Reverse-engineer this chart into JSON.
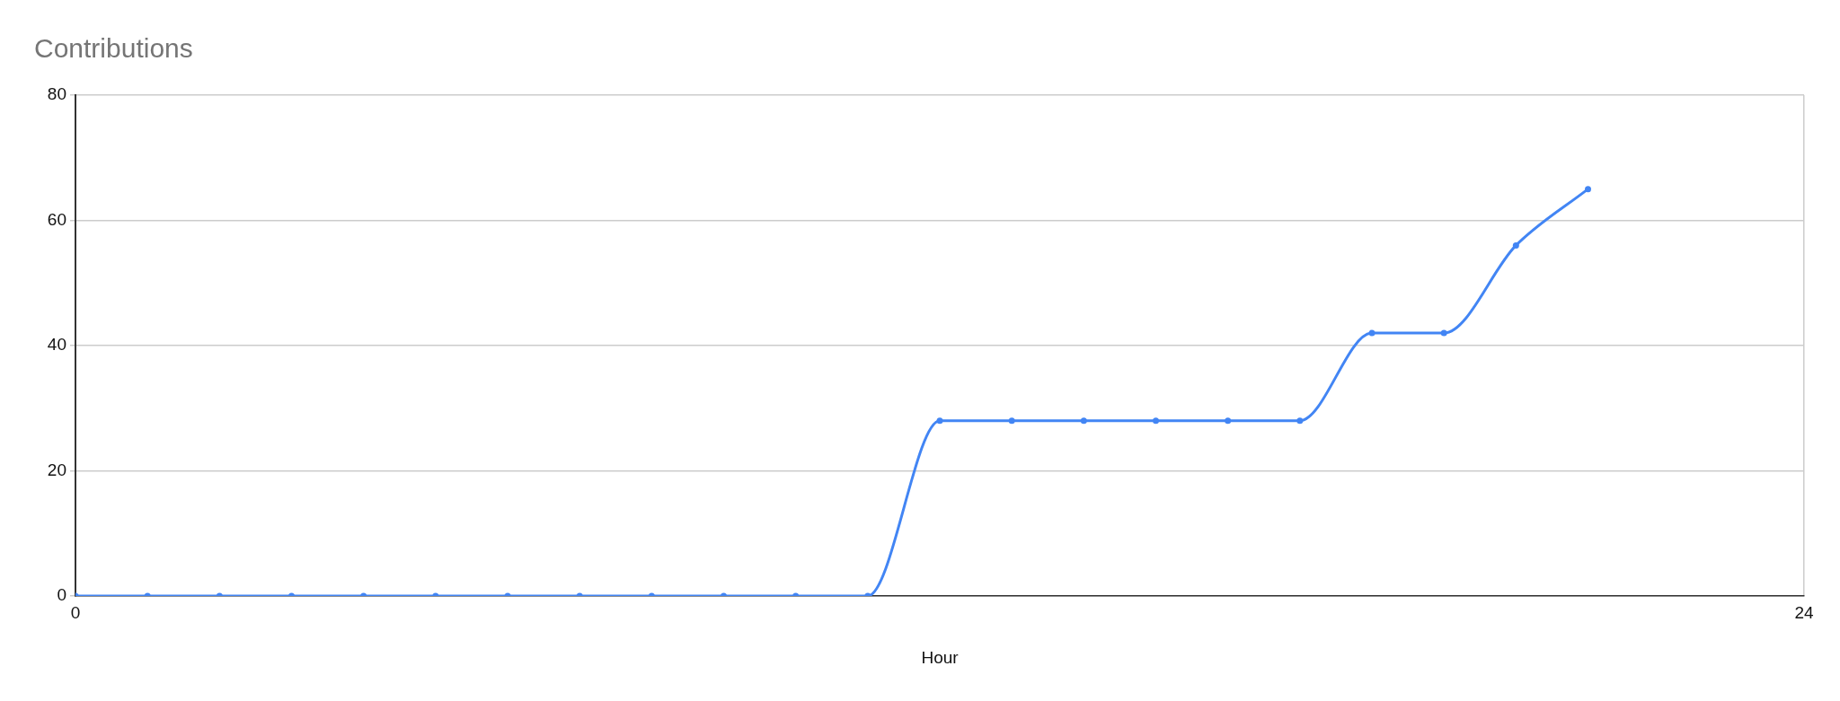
{
  "chart_data": {
    "type": "line",
    "title": "Contributions",
    "xlabel": "Hour",
    "x": [
      0,
      1,
      2,
      3,
      4,
      5,
      6,
      7,
      8,
      9,
      10,
      11,
      12,
      13,
      14,
      15,
      16,
      17,
      18,
      19,
      20,
      21
    ],
    "values": [
      0,
      0,
      0,
      0,
      0,
      0,
      0,
      0,
      0,
      0,
      0,
      0,
      28,
      28,
      28,
      28,
      28,
      28,
      42,
      42,
      56,
      65
    ],
    "color": "#4285f4",
    "xlim": [
      0,
      24
    ],
    "xticks": [
      0,
      24
    ],
    "ylim": [
      0,
      80
    ],
    "yticks": [
      0,
      20,
      40,
      60,
      80
    ],
    "grid": true,
    "marker": "circle"
  }
}
